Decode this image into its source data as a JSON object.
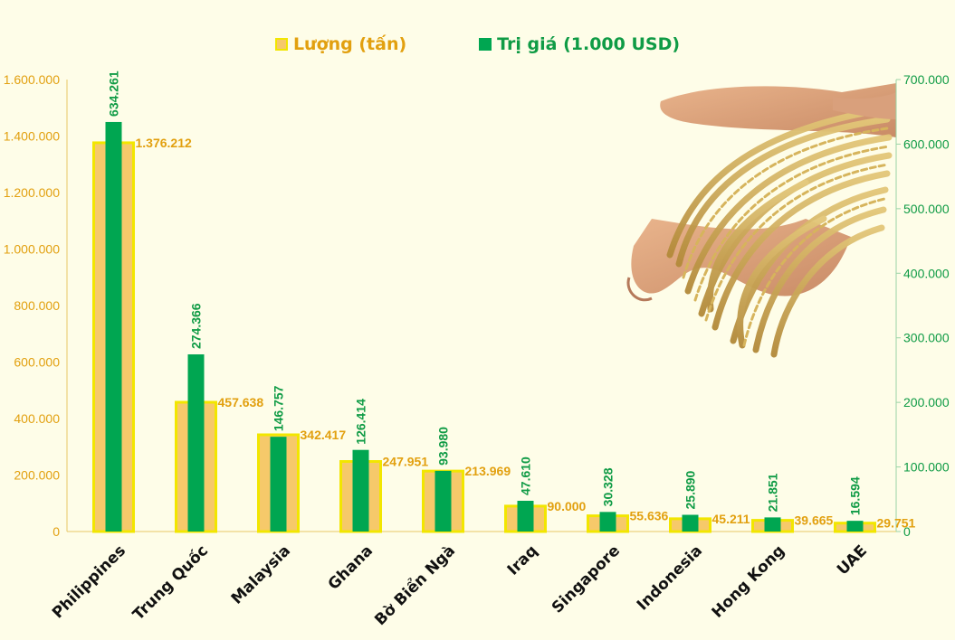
{
  "legend": {
    "quantity_label": "Lượng (tấn)",
    "value_label": "Trị giá (1.000 USD)"
  },
  "colors": {
    "background": "#fefde8",
    "quantity_fill": "#f6c96a",
    "quantity_border": "#f2e600",
    "quantity_text": "#e2a00f",
    "value_fill": "#00a651",
    "value_text": "#0f9b45",
    "left_axis_text": "#e2a00f",
    "right_axis_text": "#0f9b45"
  },
  "chart_data": {
    "type": "bar",
    "categories": [
      "Philippines",
      "Trung Quốc",
      "Malaysia",
      "Ghana",
      "Bờ Biển Ngà",
      "Iraq",
      "Singapore",
      "Indonesia",
      "Hong Kong",
      "UAE"
    ],
    "series": [
      {
        "name": "Lượng (tấn)",
        "axis": "left",
        "values": [
          1376212,
          457638,
          342417,
          247951,
          213969,
          90000,
          55636,
          45211,
          39665,
          29751
        ],
        "labels": [
          "1.376.212",
          "457.638",
          "342.417",
          "247.951",
          "213.969",
          "90.000",
          "55.636",
          "45.211",
          "39.665",
          "29.751"
        ]
      },
      {
        "name": "Trị giá (1.000 USD)",
        "axis": "right",
        "values": [
          634261,
          274366,
          146757,
          126414,
          93980,
          47610,
          30328,
          25890,
          21851,
          16594
        ],
        "labels": [
          "634.261",
          "274.366",
          "146.757",
          "126.414",
          "93.980",
          "47.610",
          "30.328",
          "25.890",
          "21.851",
          "16.594"
        ]
      }
    ],
    "y_left": {
      "range": [
        0,
        1600000
      ],
      "ticks": [
        "0",
        "200.000",
        "400.000",
        "600.000",
        "800.000",
        "1.000.000",
        "1.200.000",
        "1.400.000",
        "1.600.000"
      ]
    },
    "y_right": {
      "range": [
        0,
        700000
      ],
      "ticks": [
        "0",
        "100.000",
        "200.000",
        "300.000",
        "400.000",
        "500.000",
        "600.000",
        "700.000"
      ]
    },
    "grid": false,
    "legend_position": "top"
  }
}
